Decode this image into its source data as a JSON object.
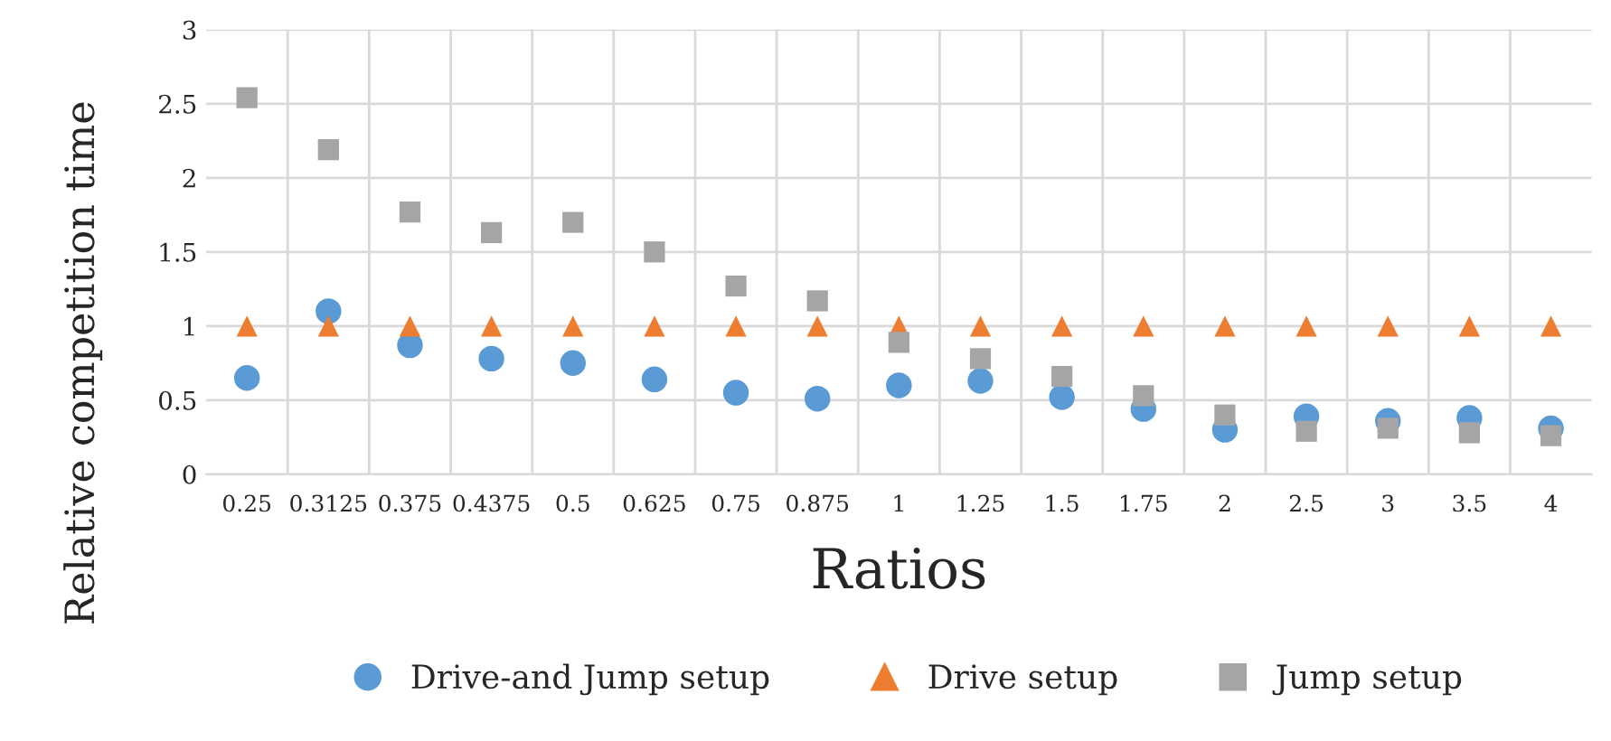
{
  "chart_data": {
    "type": "scatter",
    "xlabel": "Ratios",
    "ylabel": "Relative competition time",
    "categories": [
      "0.25",
      "0.3125",
      "0.375",
      "0.4375",
      "0.5",
      "0.625",
      "0.75",
      "0.875",
      "1",
      "1.25",
      "1.5",
      "1.75",
      "2",
      "2.5",
      "3",
      "3.5",
      "4"
    ],
    "series": [
      {
        "name": "Drive-and Jump setup",
        "color": "#5b9bd5",
        "marker": "circle",
        "values": [
          0.65,
          1.1,
          0.87,
          0.78,
          0.75,
          0.64,
          0.55,
          0.51,
          0.6,
          0.63,
          0.52,
          0.44,
          0.3,
          0.39,
          0.36,
          0.38,
          0.31
        ]
      },
      {
        "name": "Drive setup",
        "color": "#ed7d31",
        "marker": "triangle",
        "values": [
          1,
          1,
          1,
          1,
          1,
          1,
          1,
          1,
          1,
          1,
          1,
          1,
          1,
          1,
          1,
          1,
          1
        ]
      },
      {
        "name": "Jump setup",
        "color": "#a5a5a5",
        "marker": "square",
        "values": [
          2.54,
          2.19,
          1.77,
          1.63,
          1.7,
          1.5,
          1.27,
          1.17,
          0.89,
          0.78,
          0.66,
          0.53,
          0.4,
          0.29,
          0.31,
          0.28,
          0.26
        ]
      }
    ],
    "ylim": [
      0,
      3
    ],
    "yticks": [
      0,
      0.5,
      1,
      1.5,
      2,
      2.5,
      3
    ],
    "grid": true,
    "legend": "bottom"
  }
}
